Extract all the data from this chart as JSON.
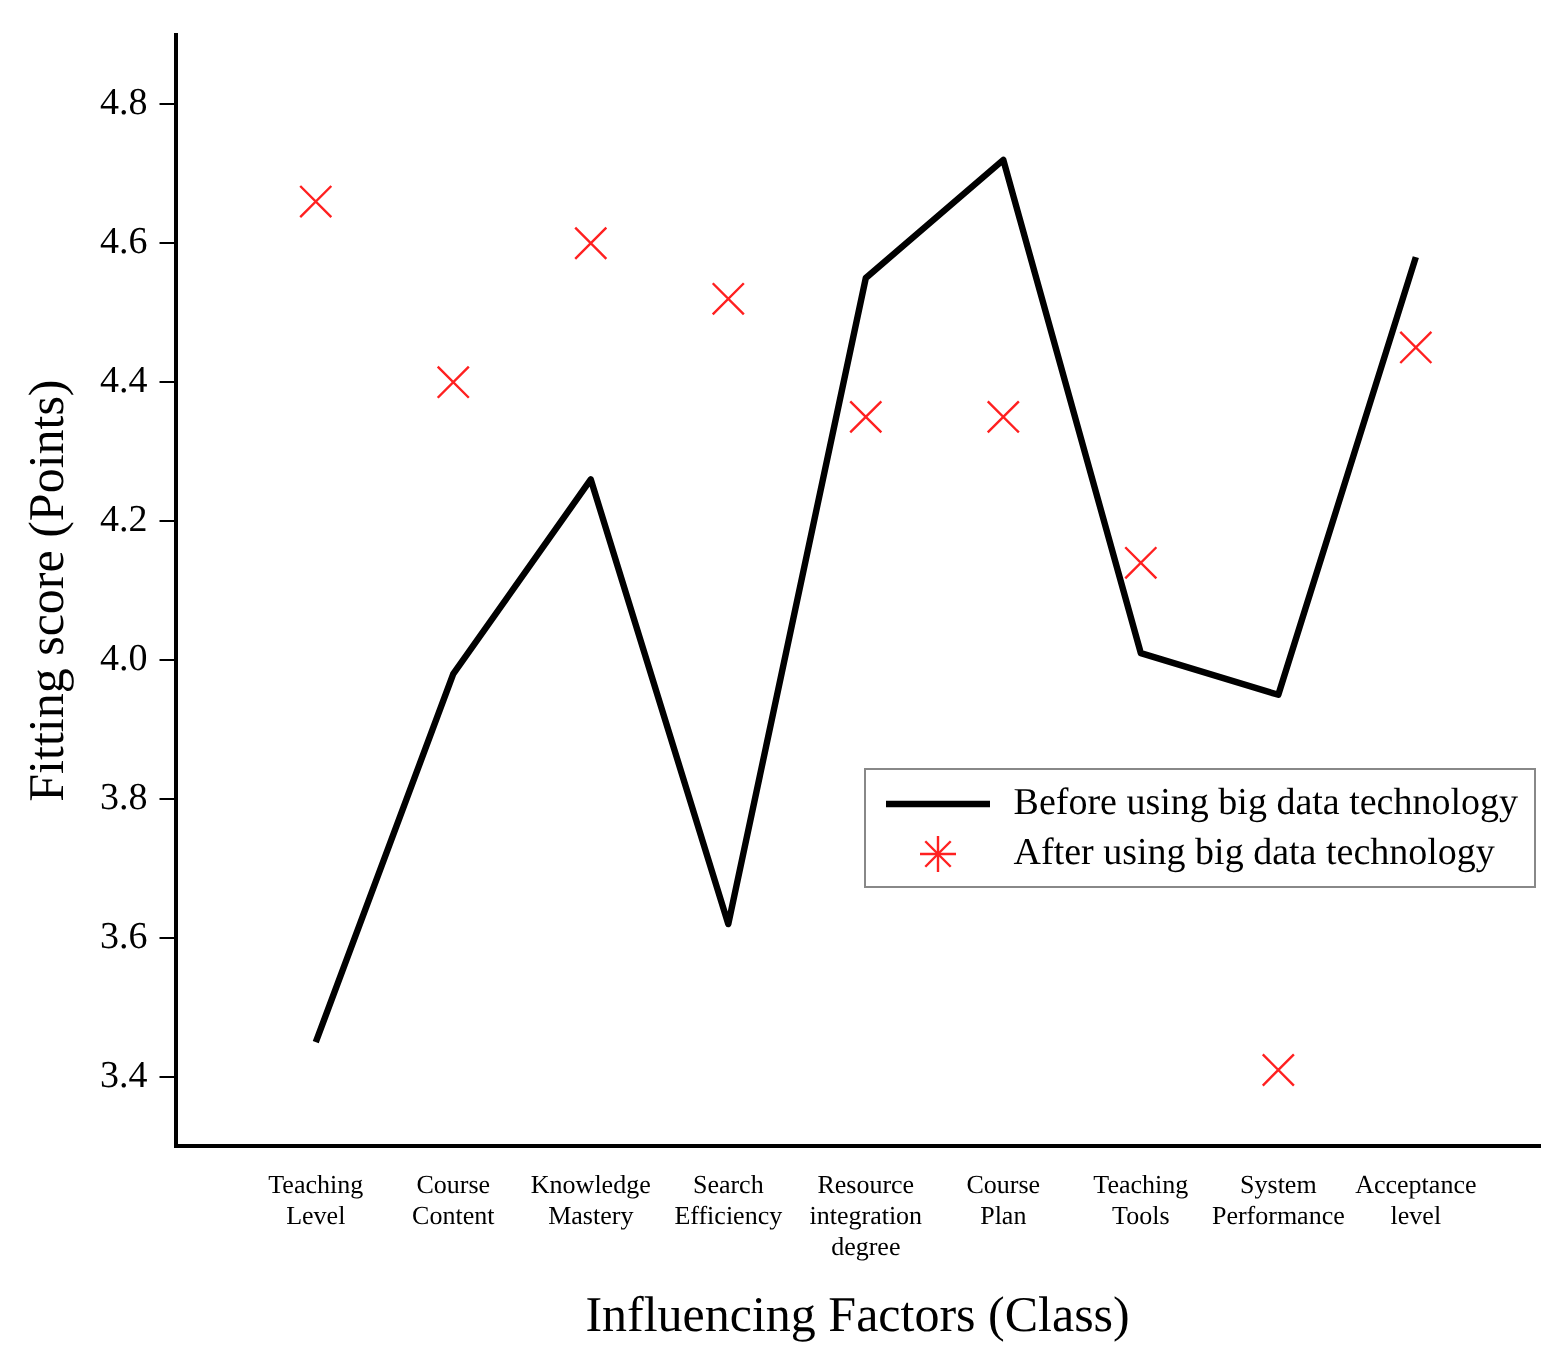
{
  "chart_data": {
    "type": "line",
    "xlabel": "Influencing Factors (Class)",
    "ylabel": "Fitting score (Points)",
    "categories": [
      "Teaching Level",
      "Course Content",
      "Knowledge Mastery",
      "Search Efficiency",
      "Resource integration degree",
      "Course Plan",
      "Teaching Tools",
      "System Performance",
      "Acceptance level"
    ],
    "series": [
      {
        "name": "Before using big data technology",
        "color": "#000000",
        "marker": "none",
        "values": [
          3.45,
          3.98,
          4.26,
          3.62,
          4.55,
          4.72,
          4.01,
          3.95,
          4.58
        ]
      },
      {
        "name": "After using big data technology",
        "type": "scatter",
        "color": "#ff2020",
        "marker": "cross",
        "values": [
          4.66,
          4.4,
          4.6,
          4.52,
          4.35,
          4.35,
          4.14,
          3.41,
          4.45
        ]
      }
    ],
    "ylim": [
      3.3,
      4.9
    ],
    "yticks": [
      {
        "value": 3.4,
        "label": "3.4"
      },
      {
        "value": 3.6,
        "label": "3.6"
      },
      {
        "value": 3.8,
        "label": "3.8"
      },
      {
        "value": 4.0,
        "label": "4.0"
      },
      {
        "value": 4.2,
        "label": "4.2"
      },
      {
        "value": 4.4,
        "label": "4.4"
      },
      {
        "value": 4.6,
        "label": "4.6"
      },
      {
        "value": 4.8,
        "label": "4.8"
      }
    ],
    "grid": false,
    "legend": "right"
  }
}
